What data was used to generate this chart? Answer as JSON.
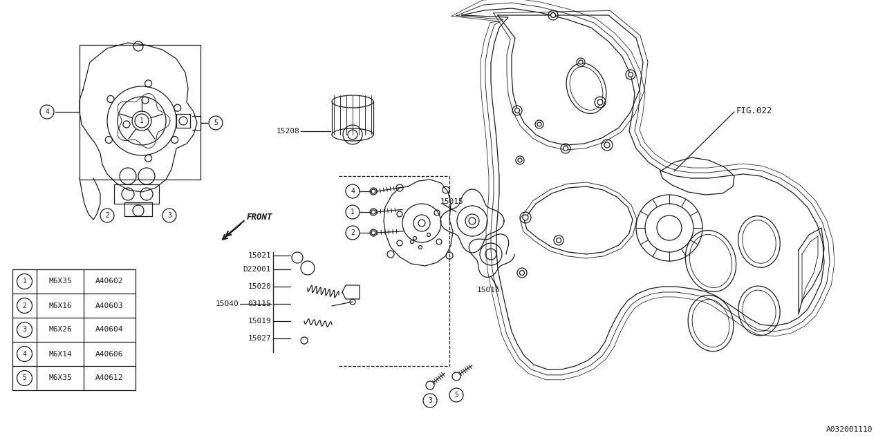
{
  "bg_color": "#ffffff",
  "line_color": "#1a1a1a",
  "fig_ref": "FIG.022",
  "part_number": "A032001110",
  "table_items": [
    {
      "num": "1",
      "size": "M6X35",
      "code": "A40602"
    },
    {
      "num": "2",
      "size": "M6X16",
      "code": "A40603"
    },
    {
      "num": "3",
      "size": "M6X26",
      "code": "A40604"
    },
    {
      "num": "4",
      "size": "M6X14",
      "code": "A40606"
    },
    {
      "num": "5",
      "size": "M6X35",
      "code": "A40612"
    }
  ],
  "font_size_label": 8,
  "font_size_table": 8,
  "lw": 0.9
}
